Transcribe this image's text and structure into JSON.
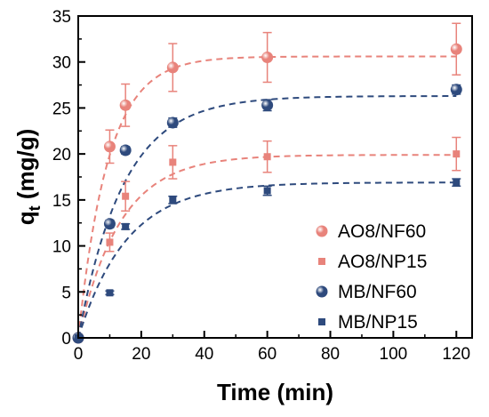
{
  "chart_data": {
    "type": "scatter",
    "xlabel": "Time (min)",
    "ylabel_main": "q",
    "ylabel_sub": "t",
    "ylabel_rest": " (mg/g)",
    "xlim": [
      0,
      125
    ],
    "ylim": [
      0,
      35
    ],
    "x_ticks": [
      0,
      20,
      40,
      60,
      80,
      100,
      120
    ],
    "y_ticks": [
      0,
      5,
      10,
      15,
      20,
      25,
      30,
      35
    ],
    "grid": false,
    "legend_position": "bottom-right",
    "series": [
      {
        "name": "AO8/NF60",
        "marker": "circle",
        "color": "#e8837b",
        "x": [
          0,
          10,
          15,
          30,
          60,
          120
        ],
        "y": [
          0,
          20.8,
          25.3,
          29.4,
          30.5,
          31.4
        ],
        "err": [
          0,
          1.8,
          2.3,
          2.6,
          2.7,
          2.8
        ],
        "fit": {
          "qe": 30.6,
          "k": 0.105
        }
      },
      {
        "name": "AO8/NP15",
        "marker": "square",
        "color": "#e8837b",
        "x": [
          0,
          10,
          15,
          30,
          60,
          120
        ],
        "y": [
          0,
          10.4,
          15.4,
          19.1,
          19.7,
          20.0
        ],
        "err": [
          0,
          1.0,
          1.6,
          1.8,
          1.7,
          1.8
        ],
        "fit": {
          "qe": 19.9,
          "k": 0.075
        }
      },
      {
        "name": "MB/NF60",
        "marker": "circle",
        "color": "#2e4a7d",
        "x": [
          0,
          10,
          15,
          30,
          60,
          120
        ],
        "y": [
          0,
          12.4,
          20.4,
          23.4,
          25.3,
          27.0
        ],
        "err": [
          0,
          0.4,
          0.4,
          0.5,
          0.6,
          0.5
        ],
        "fit": {
          "qe": 26.3,
          "k": 0.07
        }
      },
      {
        "name": "MB/NP15",
        "marker": "square",
        "color": "#2e4a7d",
        "x": [
          0,
          10,
          15,
          30,
          60,
          120
        ],
        "y": [
          0,
          4.9,
          12.1,
          15.0,
          16.0,
          16.9
        ],
        "err": [
          0,
          0.2,
          0.3,
          0.4,
          0.5,
          0.4
        ],
        "fit": {
          "qe": 16.9,
          "k": 0.065
        }
      }
    ]
  }
}
